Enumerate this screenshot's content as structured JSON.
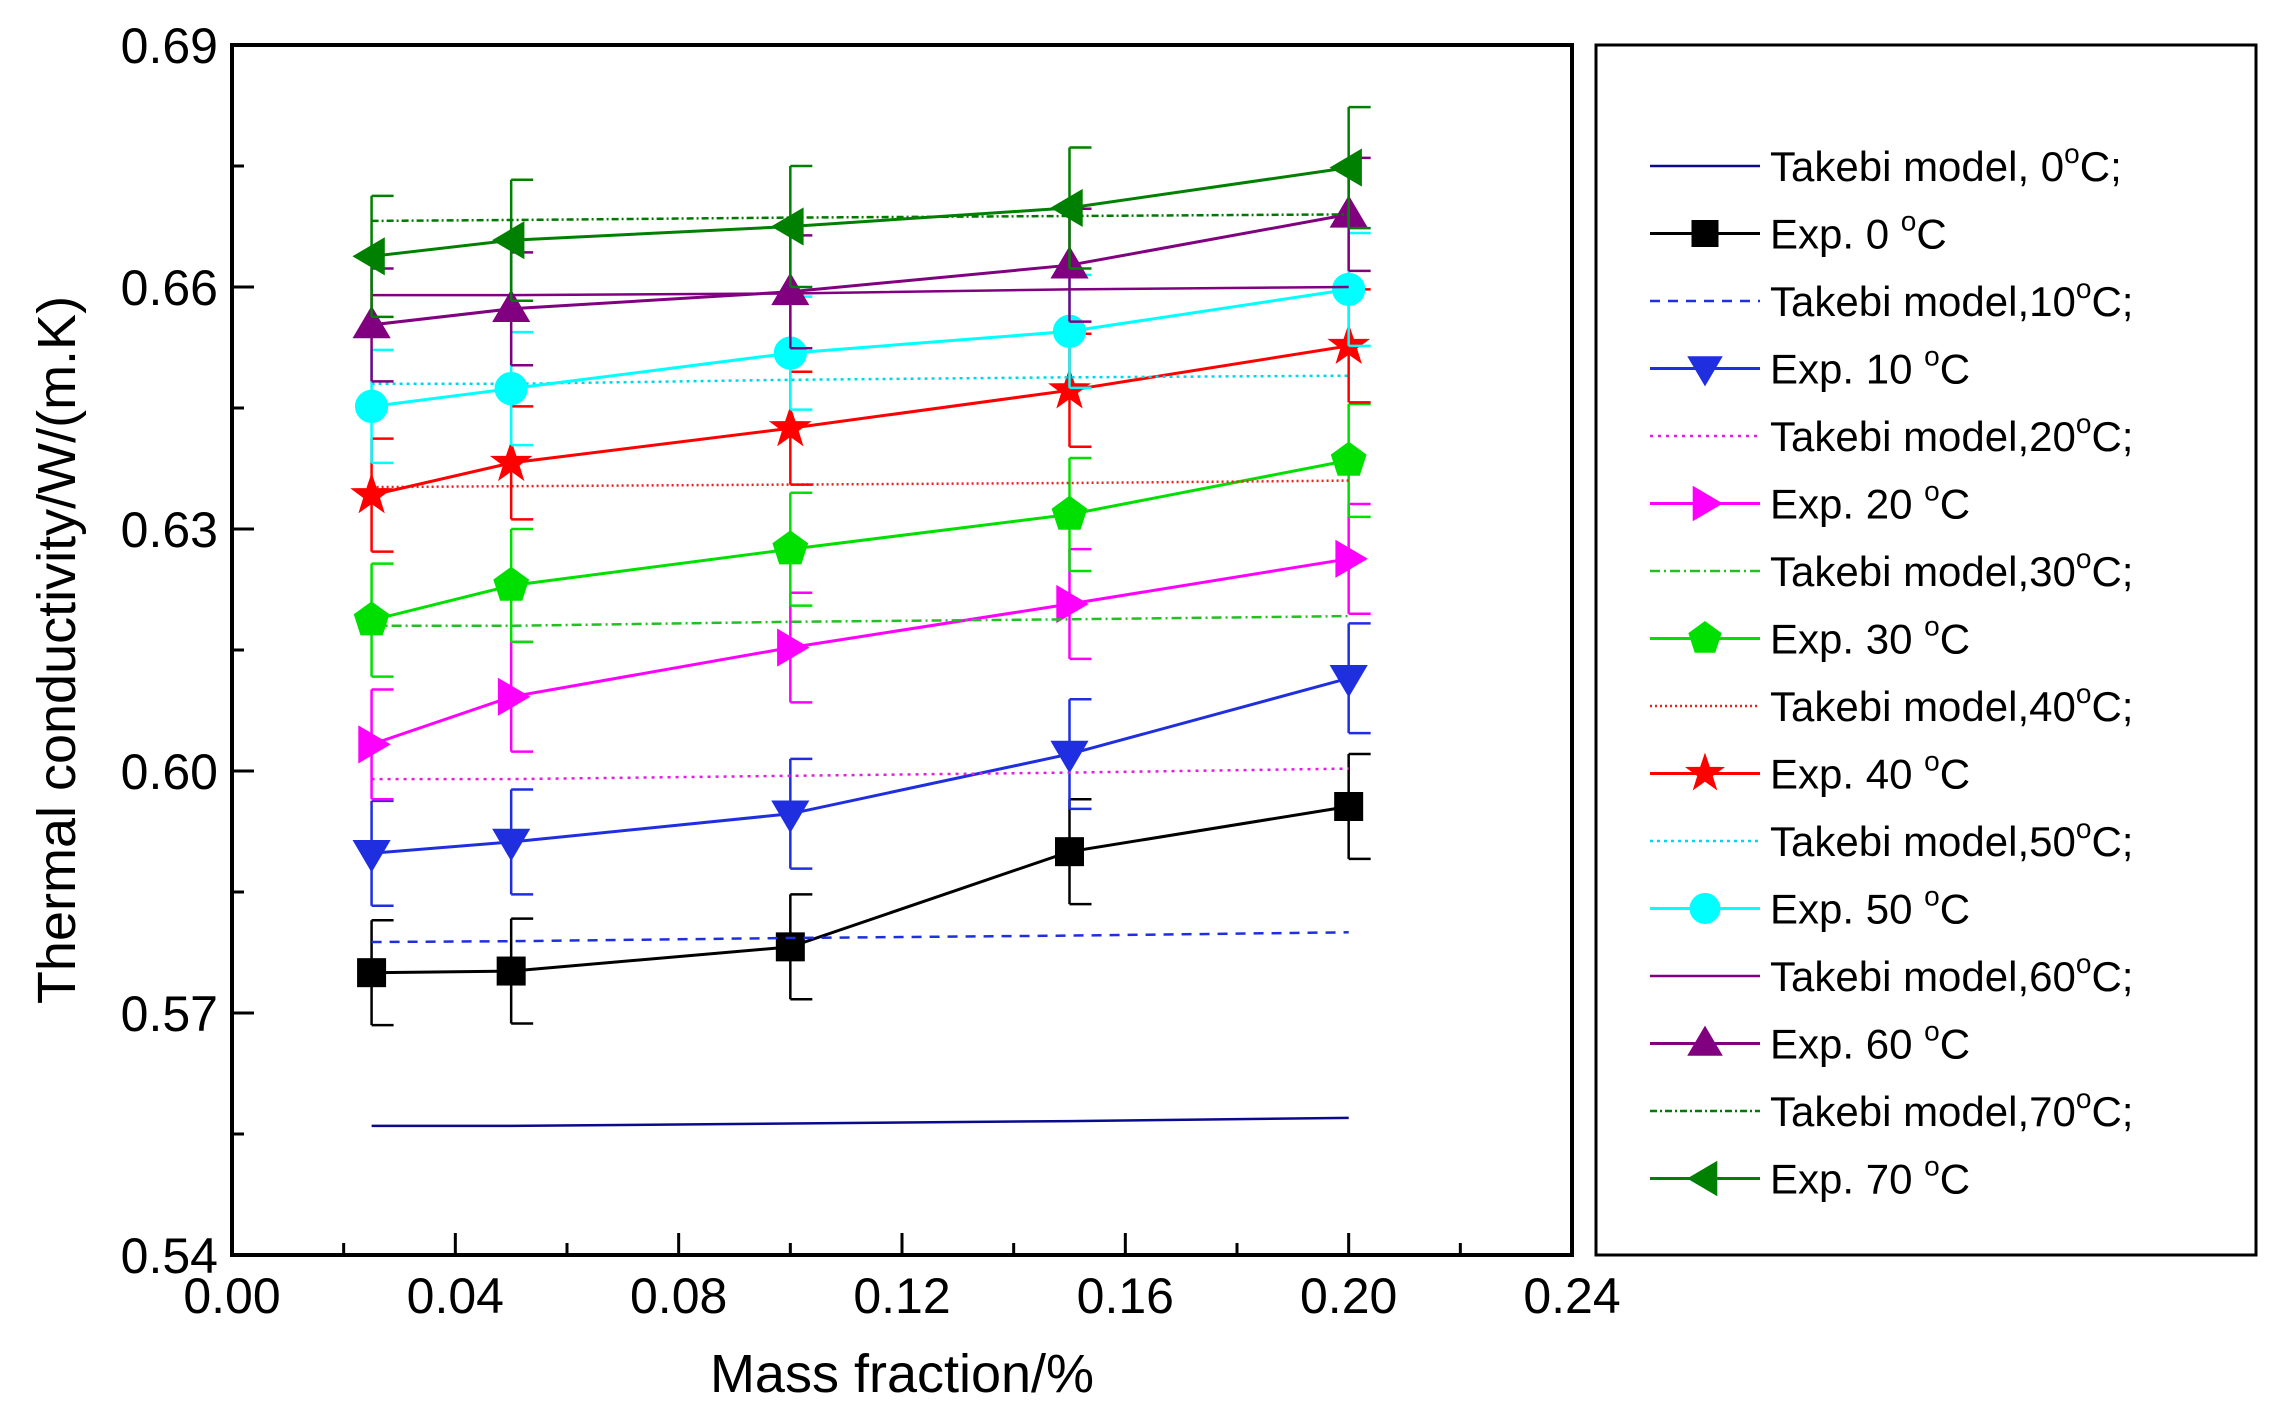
{
  "chart_data": {
    "type": "line",
    "xlabel": "Mass fraction/%",
    "ylabel": "Thermal conductivity/W/(m.K)",
    "xlim": [
      0.0,
      0.24
    ],
    "ylim": [
      0.54,
      0.69
    ],
    "xticks": [
      0.0,
      0.04,
      0.08,
      0.12,
      0.16,
      0.2,
      0.24
    ],
    "yticks": [
      0.54,
      0.57,
      0.6,
      0.63,
      0.66,
      0.69
    ],
    "x_tick_labels": [
      "0.00",
      "0.04",
      "0.08",
      "0.12",
      "0.16",
      "0.20",
      "0.24"
    ],
    "y_tick_labels": [
      "0.54",
      "0.57",
      "0.60",
      "0.63",
      "0.66",
      "0.69"
    ],
    "x": [
      0.025,
      0.05,
      0.1,
      0.15,
      0.2
    ],
    "grid": false,
    "legend_placement": "right-outside",
    "series": [
      {
        "name": "Takebi model, 0°C;",
        "legend_main": "Takebi model, 0",
        "legend_sup": "o",
        "legend_tail": "C;",
        "kind": "model",
        "color": "#0a0a8c",
        "dash": "",
        "values": [
          0.556,
          0.556,
          0.5563,
          0.5566,
          0.557
        ]
      },
      {
        "name": "Exp. 0 °C",
        "legend_main": "Exp. 0 ",
        "legend_sup": "o",
        "legend_tail": "C",
        "kind": "exp",
        "color": "#000000",
        "marker": "square",
        "values": [
          0.575,
          0.5752,
          0.5782,
          0.59,
          0.5956
        ],
        "error": [
          0.0065,
          0.0065,
          0.0065,
          0.0065,
          0.0065
        ]
      },
      {
        "name": "Takebi model,10°C;",
        "legend_main": "Takebi model,10",
        "legend_sup": "o",
        "legend_tail": "C;",
        "kind": "model",
        "color": "#1f2fe0",
        "dash": "10,8",
        "values": [
          0.5788,
          0.5789,
          0.5793,
          0.5796,
          0.58
        ]
      },
      {
        "name": "Exp. 10 °C",
        "legend_main": "Exp. 10 ",
        "legend_sup": "o",
        "legend_tail": "C",
        "kind": "exp",
        "color": "#1f2fe0",
        "marker": "tri-down",
        "values": [
          0.5898,
          0.5912,
          0.5947,
          0.6021,
          0.6115
        ],
        "error": [
          0.0065,
          0.0065,
          0.0068,
          0.0068,
          0.0068
        ]
      },
      {
        "name": "Takebi model,20°C;",
        "legend_main": "Takebi model,20",
        "legend_sup": "o",
        "legend_tail": "C;",
        "kind": "model",
        "color": "#e020e0",
        "dash": "3,5",
        "values": [
          0.599,
          0.599,
          0.5994,
          0.5998,
          0.6003
        ]
      },
      {
        "name": "Exp. 20 °C",
        "legend_main": "Exp. 20 ",
        "legend_sup": "o",
        "legend_tail": "C",
        "kind": "exp",
        "color": "#ff00ff",
        "marker": "tri-right",
        "values": [
          0.6033,
          0.6092,
          0.6153,
          0.6207,
          0.6263
        ],
        "error": [
          0.0068,
          0.0068,
          0.0068,
          0.0068,
          0.0068
        ]
      },
      {
        "name": "Takebi model,30°C;",
        "legend_main": "Takebi model,30",
        "legend_sup": "o",
        "legend_tail": "C;",
        "kind": "model",
        "color": "#22c022",
        "dash": "10,4,2,4",
        "values": [
          0.618,
          0.618,
          0.6185,
          0.6188,
          0.6192
        ]
      },
      {
        "name": "Exp. 30 °C",
        "legend_main": "Exp. 30 ",
        "legend_sup": "o",
        "legend_tail": "C",
        "kind": "exp",
        "color": "#00e000",
        "marker": "pentagon",
        "values": [
          0.6187,
          0.623,
          0.6275,
          0.6318,
          0.6385
        ],
        "error": [
          0.007,
          0.007,
          0.007,
          0.007,
          0.007
        ]
      },
      {
        "name": "Takebi model,40°C;",
        "legend_main": "Takebi model,40",
        "legend_sup": "o",
        "legend_tail": "C;",
        "kind": "model",
        "color": "#ee2020",
        "dash": "2,3",
        "values": [
          0.6352,
          0.6353,
          0.6355,
          0.6357,
          0.636
        ]
      },
      {
        "name": "Exp. 40 °C",
        "legend_main": "Exp. 40 ",
        "legend_sup": "o",
        "legend_tail": "C",
        "kind": "exp",
        "color": "#ff0000",
        "marker": "star",
        "values": [
          0.6342,
          0.6382,
          0.6425,
          0.6472,
          0.6527
        ],
        "error": [
          0.007,
          0.007,
          0.007,
          0.007,
          0.007
        ]
      },
      {
        "name": "Takebi model,50°C;",
        "legend_main": "Takebi model,50",
        "legend_sup": "o",
        "legend_tail": "C;",
        "kind": "model",
        "color": "#00d8e8",
        "dash": "3,4",
        "values": [
          0.648,
          0.648,
          0.6485,
          0.6488,
          0.649
        ]
      },
      {
        "name": "Exp. 50 °C",
        "legend_main": "Exp. 50 ",
        "legend_sup": "o",
        "legend_tail": "C",
        "kind": "exp",
        "color": "#00ffff",
        "marker": "circle",
        "values": [
          0.6452,
          0.6474,
          0.6518,
          0.6545,
          0.6597
        ],
        "error": [
          0.007,
          0.007,
          0.007,
          0.007,
          0.007
        ]
      },
      {
        "name": "Takebi model,60°C;",
        "legend_main": "Takebi model,60",
        "legend_sup": "o",
        "legend_tail": "C;",
        "kind": "model",
        "color": "#800080",
        "dash": "",
        "values": [
          0.659,
          0.659,
          0.6592,
          0.6597,
          0.66
        ]
      },
      {
        "name": "Exp. 60 °C",
        "legend_main": "Exp. 60 ",
        "legend_sup": "o",
        "legend_tail": "C",
        "kind": "exp",
        "color": "#800080",
        "marker": "tri-up",
        "values": [
          0.6553,
          0.6573,
          0.6594,
          0.6627,
          0.669
        ],
        "error": [
          0.007,
          0.007,
          0.007,
          0.007,
          0.007
        ]
      },
      {
        "name": "Takebi model,70°C;",
        "legend_main": "Takebi model,70",
        "legend_sup": "o",
        "legend_tail": "C;",
        "kind": "model",
        "color": "#007a00",
        "dash": "7,3,2,3",
        "values": [
          0.6682,
          0.6683,
          0.6686,
          0.6688,
          0.669
        ]
      },
      {
        "name": "Exp. 70 °C",
        "legend_main": "Exp. 70 ",
        "legend_sup": "o",
        "legend_tail": "C",
        "kind": "exp",
        "color": "#008000",
        "marker": "tri-left",
        "values": [
          0.6638,
          0.6658,
          0.6675,
          0.6698,
          0.6748
        ],
        "error": [
          0.0075,
          0.0075,
          0.0075,
          0.0075,
          0.0075
        ]
      }
    ]
  }
}
